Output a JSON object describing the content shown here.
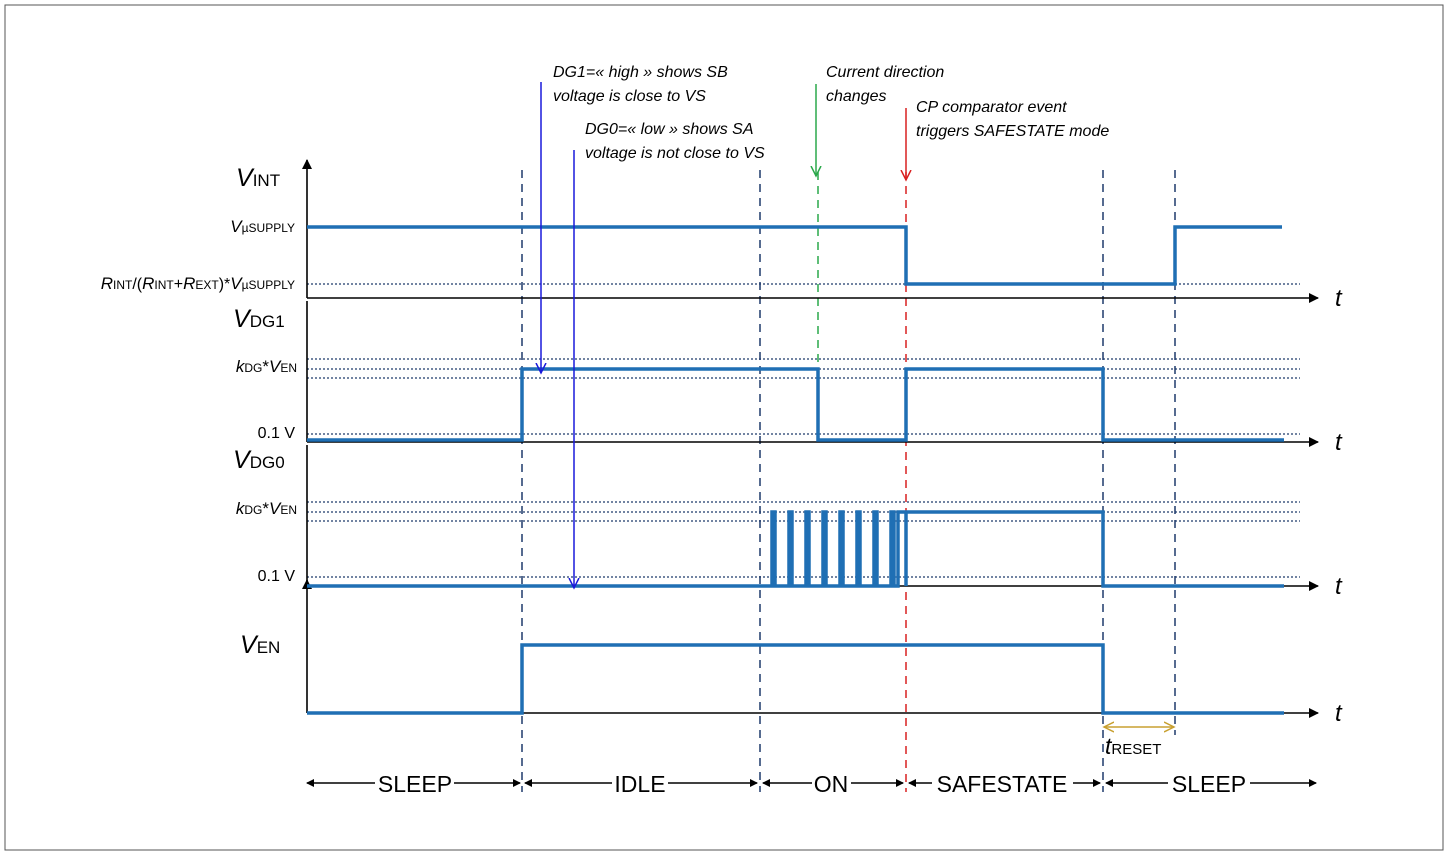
{
  "axes": {
    "v_int": {
      "main": "V",
      "sub": "INT"
    },
    "v_dg1": {
      "main": "V",
      "sub": "DG1"
    },
    "v_dg0": {
      "main": "V",
      "sub": "DG0"
    },
    "v_en": {
      "main": "V",
      "sub": "EN"
    },
    "time_label": "t"
  },
  "levels": {
    "v_supply": {
      "main": "V",
      "sub": "µSUPPLY"
    },
    "divider": {
      "r1": "R",
      "r1_sub": "INT",
      "mid1": "/(",
      "r2": "R",
      "r2_sub": "INT",
      "plus": "+",
      "r3": "R",
      "r3_sub": "EXT",
      "mid2": ")*",
      "v": "V",
      "v_sub": "µSUPPLY"
    },
    "kdg": {
      "k": "k",
      "k_sub": "DG",
      "star": "*",
      "v": "V",
      "v_sub": "EN"
    },
    "low": "0.1 V"
  },
  "annotations": {
    "dg1_note": [
      "DG1=« high » shows SB",
      "voltage is close to VS"
    ],
    "dg0_note": [
      "DG0=« low » shows SA",
      "voltage is not close to VS"
    ],
    "current_note": [
      "Current direction",
      "changes"
    ],
    "cp_note": [
      "CP comparator event",
      "triggers SAFESTATE mode"
    ],
    "t_reset": {
      "main": "t",
      "sub": "RESET"
    },
    "colors": {
      "signal": "#1f6fb4",
      "dg_arrows": "#1a1adb",
      "current_arrow": "#2aa84a",
      "cp_arrow": "#d92020",
      "reset_arrow": "#c8a030"
    }
  },
  "phases": [
    "SLEEP",
    "IDLE",
    "ON",
    "SAFESTATE",
    "SLEEP"
  ]
}
